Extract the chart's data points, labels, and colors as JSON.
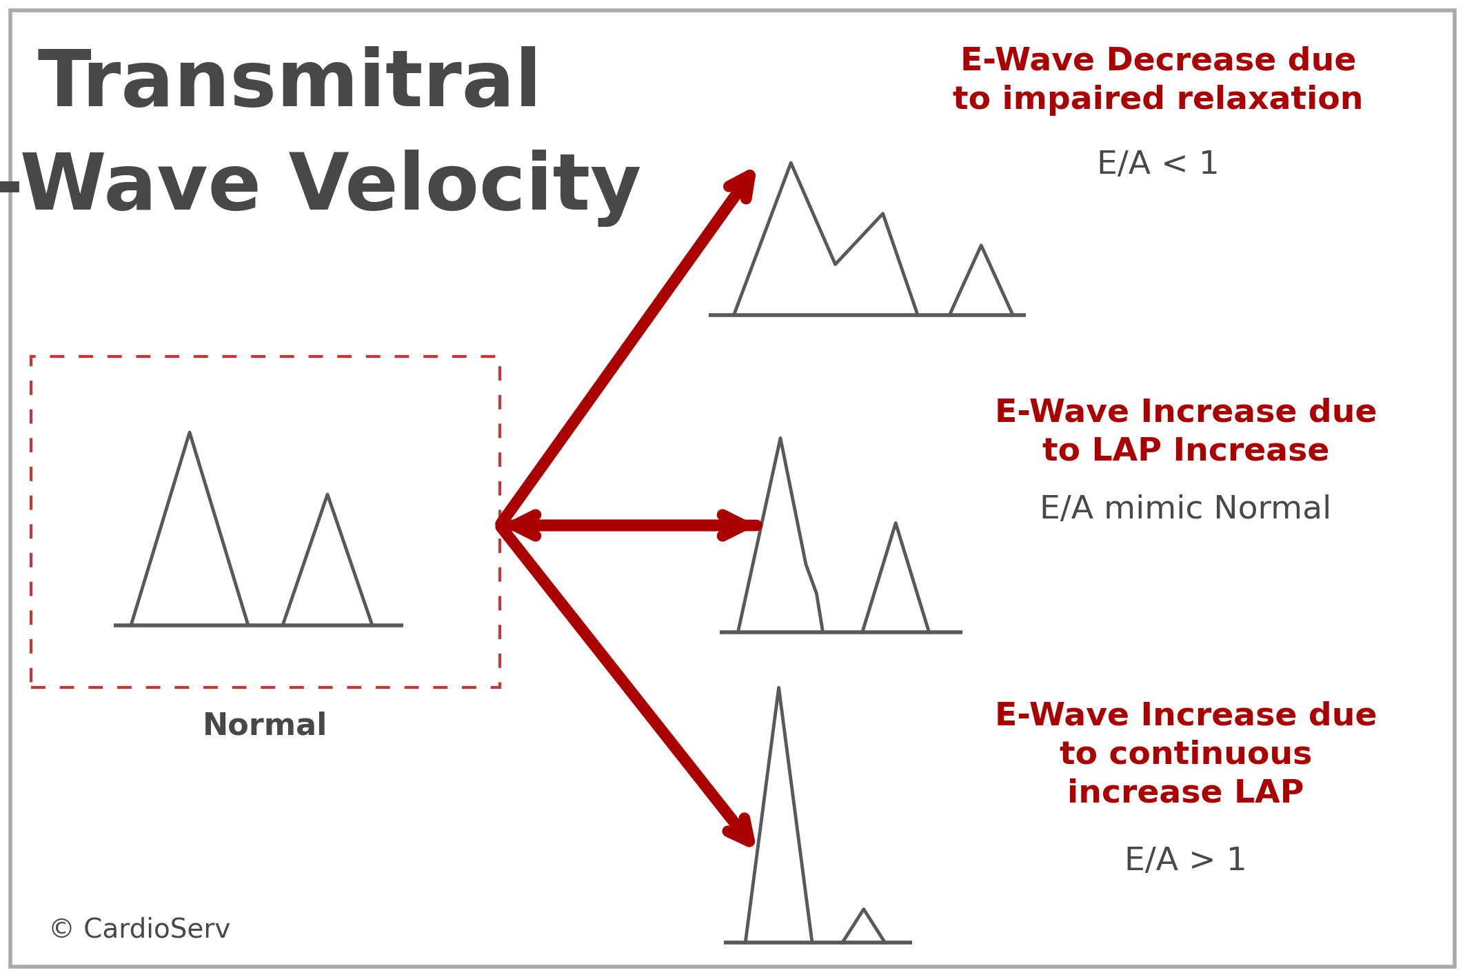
{
  "title_line1": "Transmitral",
  "title_line2": "E-Wave Velocity",
  "bg_color": "#ffffff",
  "title_color": "#484848",
  "arrow_color": "#aa0000",
  "waveform_color": "#595959",
  "dashed_box_color": "#cc3333",
  "label_normal": "Normal",
  "copyright": "© CardioServ",
  "label_top": "E-Wave Decrease due\nto impaired relaxation",
  "sublabel_top": "E/A < 1",
  "label_mid": "E-Wave Increase due\nto LAP Increase",
  "sublabel_mid": "E/A mimic Normal",
  "label_bot": "E-Wave Increase due\nto continuous\nincrease LAP",
  "sublabel_bot": "E/A > 1",
  "red_label_color": "#aa0000",
  "dark_label_color": "#484848",
  "border_color": "#aaaaaa"
}
